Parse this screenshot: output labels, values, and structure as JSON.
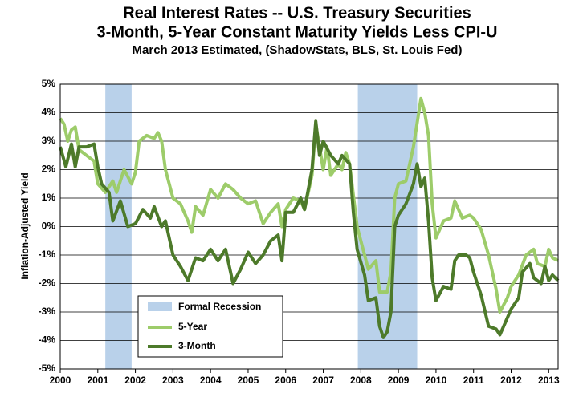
{
  "chart_data": {
    "type": "line",
    "title": "Real Interest Rates -- U.S. Treasury Securities",
    "subtitle": [
      "3-Month, 5-Year Constant Maturity Yields Less CPI-U",
      "March 2013 Estimated, (ShadowStats, BLS, St. Louis Fed)"
    ],
    "ylabel": "Inflation-Adjusted Yield",
    "xlim": [
      2000,
      2013.25
    ],
    "xticks": [
      2000,
      2001,
      2002,
      2003,
      2004,
      2005,
      2006,
      2007,
      2008,
      2009,
      2010,
      2011,
      2012,
      2013
    ],
    "ylim": [
      -5,
      5
    ],
    "yticks": [
      {
        "value": -5,
        "label": "-5%"
      },
      {
        "value": -4,
        "label": "-4%"
      },
      {
        "value": -3,
        "label": "-3%"
      },
      {
        "value": -2,
        "label": "-2%"
      },
      {
        "value": -1,
        "label": "-1%"
      },
      {
        "value": 0,
        "label": "0%"
      },
      {
        "value": 1,
        "label": "1%"
      },
      {
        "value": 2,
        "label": "2%"
      },
      {
        "value": 3,
        "label": "3%"
      },
      {
        "value": 4,
        "label": "4%"
      },
      {
        "value": 5,
        "label": "5%"
      }
    ],
    "grid": true,
    "legend": "lower left",
    "recession_label": "Formal Recession",
    "recession_color": "#b9d1ea",
    "recessions": [
      {
        "start": 2001.2,
        "end": 2001.9
      },
      {
        "start": 2007.92,
        "end": 2009.5
      }
    ],
    "series": [
      {
        "name": "5-Year",
        "color": "#9dcc6a",
        "x": [
          2000.0,
          2000.1,
          2000.2,
          2000.3,
          2000.4,
          2000.5,
          2000.7,
          2000.9,
          2001.0,
          2001.2,
          2001.4,
          2001.5,
          2001.7,
          2001.9,
          2002.0,
          2002.1,
          2002.3,
          2002.5,
          2002.6,
          2002.7,
          2002.8,
          2003.0,
          2003.2,
          2003.4,
          2003.5,
          2003.6,
          2003.8,
          2004.0,
          2004.2,
          2004.4,
          2004.6,
          2004.8,
          2005.0,
          2005.2,
          2005.4,
          2005.6,
          2005.8,
          2005.9,
          2006.0,
          2006.2,
          2006.4,
          2006.5,
          2006.7,
          2006.8,
          2007.0,
          2007.1,
          2007.2,
          2007.4,
          2007.5,
          2007.6,
          2007.7,
          2007.9,
          2008.0,
          2008.2,
          2008.4,
          2008.5,
          2008.7,
          2008.8,
          2008.9,
          2009.0,
          2009.2,
          2009.4,
          2009.6,
          2009.7,
          2009.8,
          2009.9,
          2010.0,
          2010.2,
          2010.4,
          2010.5,
          2010.7,
          2010.9,
          2011.0,
          2011.2,
          2011.4,
          2011.6,
          2011.7,
          2011.9,
          2012.0,
          2012.2,
          2012.4,
          2012.6,
          2012.7,
          2012.9,
          2013.0,
          2013.1,
          2013.25
        ],
        "values": [
          3.8,
          3.6,
          3.0,
          3.4,
          3.5,
          2.7,
          2.5,
          2.3,
          1.5,
          1.2,
          1.6,
          1.2,
          2.0,
          1.5,
          1.9,
          3.0,
          3.2,
          3.1,
          3.3,
          3.0,
          2.0,
          1.0,
          0.8,
          0.2,
          -0.2,
          0.7,
          0.4,
          1.3,
          1.0,
          1.5,
          1.3,
          1.0,
          0.8,
          0.9,
          0.1,
          0.5,
          0.8,
          0.0,
          0.6,
          1.0,
          0.9,
          0.6,
          1.8,
          3.6,
          2.0,
          2.8,
          1.8,
          2.2,
          2.0,
          2.6,
          2.2,
          0.0,
          -0.5,
          -1.5,
          -1.2,
          -2.3,
          -2.3,
          -1.6,
          1.0,
          1.5,
          1.6,
          2.8,
          4.5,
          4.0,
          3.2,
          0.8,
          -0.4,
          0.2,
          0.3,
          0.9,
          0.3,
          0.4,
          0.3,
          -0.1,
          -1.0,
          -2.2,
          -3.0,
          -2.5,
          -2.1,
          -1.7,
          -1.0,
          -0.8,
          -1.3,
          -1.4,
          -0.8,
          -1.1,
          -1.2
        ]
      },
      {
        "name": "3-Month",
        "color": "#4d7a2a",
        "x": [
          2000.0,
          2000.15,
          2000.3,
          2000.4,
          2000.5,
          2000.7,
          2000.9,
          2001.0,
          2001.1,
          2001.3,
          2001.4,
          2001.6,
          2001.8,
          2002.0,
          2002.2,
          2002.4,
          2002.5,
          2002.7,
          2002.8,
          2003.0,
          2003.2,
          2003.4,
          2003.6,
          2003.8,
          2004.0,
          2004.2,
          2004.4,
          2004.6,
          2004.8,
          2005.0,
          2005.2,
          2005.4,
          2005.6,
          2005.8,
          2005.9,
          2006.0,
          2006.2,
          2006.4,
          2006.5,
          2006.7,
          2006.8,
          2006.9,
          2007.0,
          2007.2,
          2007.4,
          2007.5,
          2007.7,
          2007.8,
          2007.9,
          2008.1,
          2008.2,
          2008.4,
          2008.5,
          2008.6,
          2008.7,
          2008.8,
          2008.9,
          2009.0,
          2009.2,
          2009.4,
          2009.5,
          2009.6,
          2009.7,
          2009.8,
          2009.9,
          2010.0,
          2010.2,
          2010.4,
          2010.5,
          2010.6,
          2010.8,
          2010.9,
          2011.0,
          2011.2,
          2011.4,
          2011.6,
          2011.7,
          2011.8,
          2012.0,
          2012.2,
          2012.3,
          2012.5,
          2012.6,
          2012.8,
          2012.9,
          2013.0,
          2013.1,
          2013.25
        ],
        "values": [
          2.8,
          2.1,
          2.9,
          2.1,
          2.8,
          2.8,
          2.9,
          2.1,
          1.5,
          1.2,
          0.2,
          0.9,
          0.0,
          0.1,
          0.6,
          0.3,
          0.7,
          0.0,
          0.2,
          -1.0,
          -1.4,
          -1.9,
          -1.1,
          -1.2,
          -0.8,
          -1.2,
          -0.8,
          -2.0,
          -1.5,
          -0.9,
          -1.3,
          -1.0,
          -0.5,
          -0.3,
          -1.2,
          0.5,
          0.5,
          1.0,
          0.6,
          2.0,
          3.7,
          2.5,
          3.0,
          2.5,
          2.2,
          2.5,
          2.2,
          0.5,
          -0.8,
          -1.7,
          -2.6,
          -2.5,
          -3.5,
          -3.9,
          -3.7,
          -3.0,
          0.0,
          0.4,
          0.8,
          1.5,
          2.2,
          1.4,
          1.7,
          0.2,
          -1.8,
          -2.6,
          -2.1,
          -2.2,
          -1.2,
          -1.0,
          -1.0,
          -1.1,
          -1.6,
          -2.4,
          -3.5,
          -3.6,
          -3.8,
          -3.5,
          -2.9,
          -2.5,
          -1.6,
          -1.3,
          -1.8,
          -2.0,
          -1.4,
          -1.9,
          -1.7,
          -1.9
        ]
      }
    ]
  }
}
